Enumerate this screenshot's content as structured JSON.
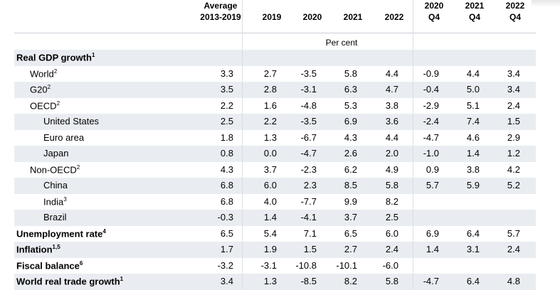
{
  "header": {
    "col_avg": [
      "Average",
      "2013-2019"
    ],
    "col_2019": "2019",
    "col_2020": "2020",
    "col_2021": "2021",
    "col_2022": "2022",
    "col_2020q4": [
      "2020",
      "Q4"
    ],
    "col_2021q4": [
      "2021",
      "Q4"
    ],
    "col_2022q4": [
      "2022",
      "Q4"
    ]
  },
  "unit": "Per cent",
  "rows": [
    {
      "label": "Real GDP growth",
      "sup": "1",
      "bold": true,
      "indent": 0,
      "values": [
        "",
        "",
        "",
        "",
        "",
        "",
        "",
        ""
      ]
    },
    {
      "label": "World",
      "sup": "2",
      "bold": false,
      "indent": 1,
      "values": [
        "3.3",
        "2.7",
        "-3.5",
        "5.8",
        "4.4",
        "-0.9",
        "4.4",
        "3.4"
      ]
    },
    {
      "label": "G20",
      "sup": "2",
      "bold": false,
      "indent": 1,
      "values": [
        "3.5",
        "2.8",
        "-3.1",
        "6.3",
        "4.7",
        "-0.4",
        "5.0",
        "3.4"
      ]
    },
    {
      "label": "OECD",
      "sup": "2",
      "bold": false,
      "indent": 1,
      "values": [
        "2.2",
        "1.6",
        "-4.8",
        "5.3",
        "3.8",
        "-2.9",
        "5.1",
        "2.4"
      ]
    },
    {
      "label": "United States",
      "sup": "",
      "bold": false,
      "indent": 2,
      "values": [
        "2.5",
        "2.2",
        "-3.5",
        "6.9",
        "3.6",
        "-2.4",
        "7.4",
        "1.5"
      ]
    },
    {
      "label": "Euro area",
      "sup": "",
      "bold": false,
      "indent": 2,
      "values": [
        "1.8",
        "1.3",
        "-6.7",
        "4.3",
        "4.4",
        "-4.7",
        "4.6",
        "2.9"
      ]
    },
    {
      "label": "Japan",
      "sup": "",
      "bold": false,
      "indent": 2,
      "values": [
        "0.8",
        "0.0",
        "-4.7",
        "2.6",
        "2.0",
        "-1.0",
        "1.4",
        "1.2"
      ]
    },
    {
      "label": "Non-OECD",
      "sup": "2",
      "bold": false,
      "indent": 1,
      "values": [
        "4.3",
        "3.7",
        "-2.3",
        "6.2",
        "4.9",
        "0.9",
        "3.8",
        "4.2"
      ]
    },
    {
      "label": "China",
      "sup": "",
      "bold": false,
      "indent": 2,
      "values": [
        "6.8",
        "6.0",
        "2.3",
        "8.5",
        "5.8",
        "5.7",
        "5.9",
        "5.2"
      ]
    },
    {
      "label": "India",
      "sup": "3",
      "bold": false,
      "indent": 2,
      "values": [
        "6.8",
        "4.0",
        "-7.7",
        "9.9",
        "8.2",
        "",
        "",
        ""
      ]
    },
    {
      "label": "Brazil",
      "sup": "",
      "bold": false,
      "indent": 2,
      "values": [
        "-0.3",
        "1.4",
        "-4.1",
        "3.7",
        "2.5",
        "",
        "",
        ""
      ]
    },
    {
      "label": "Unemployment rate",
      "sup": "4",
      "bold": true,
      "indent": 0,
      "values": [
        "6.5",
        "5.4",
        "7.1",
        "6.5",
        "6.0",
        "6.9",
        "6.4",
        "5.7"
      ]
    },
    {
      "label": "Inflation",
      "sup": "1,5",
      "bold": true,
      "indent": 0,
      "values": [
        "1.7",
        "1.9",
        "1.5",
        "2.7",
        "2.4",
        "1.4",
        "3.1",
        "2.4"
      ]
    },
    {
      "label": "Fiscal balance",
      "sup": "6",
      "bold": true,
      "indent": 0,
      "values": [
        "-3.2",
        "-3.1",
        "-10.8",
        "-10.1",
        "-6.0",
        "",
        "",
        ""
      ]
    },
    {
      "label": "World real trade growth",
      "sup": "1",
      "bold": true,
      "indent": 0,
      "values": [
        "3.4",
        "1.3",
        "-8.5",
        "8.2",
        "5.8",
        "-4.7",
        "6.4",
        "4.8"
      ]
    }
  ]
}
